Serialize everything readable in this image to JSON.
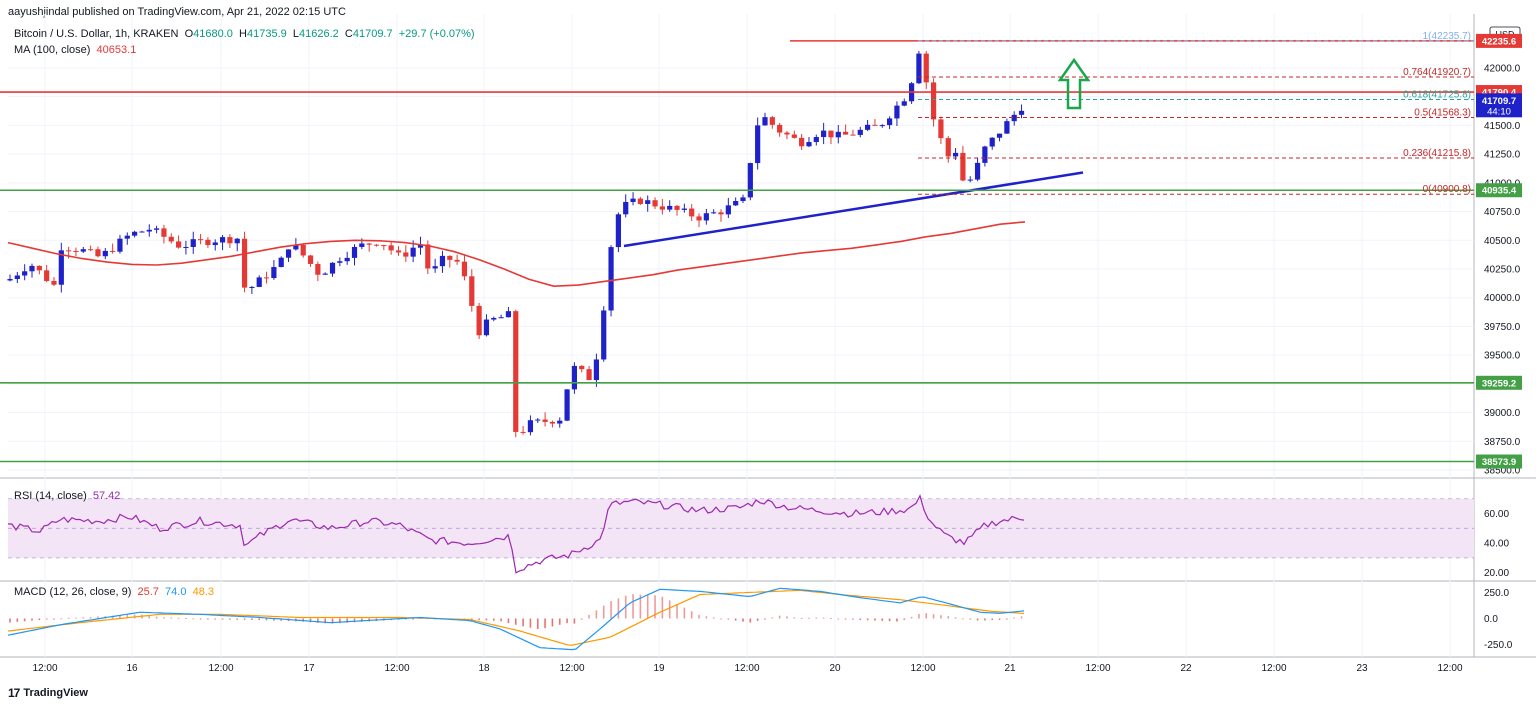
{
  "header": {
    "credit": "aayushjindal published on TradingView.com, Apr 21, 2022 02:15 UTC"
  },
  "legend": {
    "symbol": "Bitcoin / U.S. Dollar, 1h, KRAKEN",
    "o_label": "O",
    "o": "41680.0",
    "h_label": "H",
    "h": "41735.9",
    "l_label": "L",
    "l": "41626.2",
    "c_label": "C",
    "c": "41709.7",
    "change": "+29.7 (+0.07%)",
    "ma_label": "MA (100, close)",
    "ma_value": "40653.1",
    "rsi_label": "RSI (14, close)",
    "rsi_value": "57.42",
    "macd_label": "MACD (12, 26, close, 9)",
    "macd_hist": "25.7",
    "macd_line": "74.0",
    "macd_signal": "48.3"
  },
  "footer": {
    "logo": "17",
    "brand": "TradingView"
  },
  "colors": {
    "up": "#1e22c8",
    "down": "#e53935",
    "ma": "#e53935",
    "trendline": "#1e22c8",
    "support": "#43a047",
    "resistance": "#e53935",
    "fib": "#c62828",
    "rsi": "#9c27b0",
    "rsi_band": "#f3e5f5",
    "macd_line": "#2196f3",
    "macd_signal": "#ff9800",
    "arrow": "#1aa64a",
    "price_tag": "#1e22c8"
  },
  "chart_data": [
    {
      "type": "candlestick",
      "name": "price",
      "ylim": [
        38500,
        42400
      ],
      "y_ticks": [
        "42000.0",
        "41750.0",
        "41500.0",
        "41250.0",
        "41000.0",
        "40750.0",
        "40500.0",
        "40250.0",
        "40000.0",
        "39750.0",
        "39500.0",
        "39250.0",
        "39000.0",
        "38750.0",
        "38500.0"
      ],
      "y_tick_values": [
        42000,
        41750,
        41500,
        41250,
        41000,
        40750,
        40500,
        40250,
        40000,
        39750,
        39500,
        39250,
        39000,
        38750,
        38500
      ],
      "x_ticks": [
        "12:00",
        "16",
        "12:00",
        "17",
        "12:00",
        "18",
        "12:00",
        "19",
        "12:00",
        "20",
        "12:00",
        "21",
        "12:00",
        "22",
        "12:00",
        "23",
        "12:00"
      ],
      "axis_unit": "USD",
      "ma_100": [
        40480,
        40430,
        40380,
        40340,
        40310,
        40290,
        40285,
        40300,
        40330,
        40360,
        40400,
        40440,
        40470,
        40490,
        40500,
        40495,
        40480,
        40450,
        40400,
        40330,
        40250,
        40160,
        40100,
        40110,
        40140,
        40170,
        40200,
        40240,
        40270,
        40300,
        40330,
        40360,
        40390,
        40410,
        40430,
        40460,
        40490,
        40530,
        40560,
        40600,
        40640,
        40660
      ],
      "horizontal_levels": [
        {
          "price": 42235.6,
          "label": "42235.6",
          "kind": "resistance"
        },
        {
          "price": 41790.4,
          "label": "41790.4",
          "kind": "resistance"
        },
        {
          "price": 40935.4,
          "label": "40935.4",
          "kind": "support"
        },
        {
          "price": 39259.2,
          "label": "39259.2",
          "kind": "support"
        },
        {
          "price": 38573.9,
          "label": "38573.9",
          "kind": "support"
        }
      ],
      "fib_levels": [
        {
          "price": 42235.7,
          "label": "1(42235.7)"
        },
        {
          "price": 41920.7,
          "label": "0.764(41920.7)"
        },
        {
          "price": 41725.8,
          "label": "0.618(41725.8)"
        },
        {
          "price": 41568.3,
          "label": "0.5(41568.3)"
        },
        {
          "price": 41215.8,
          "label": "0.236(41215.8)"
        },
        {
          "price": 40900.8,
          "label": "0(40900.8)"
        }
      ],
      "last_price": {
        "price": 41709.7,
        "label": "41709.7",
        "countdown": "44:10"
      },
      "trendline": {
        "from": 40450,
        "to": 41090
      }
    },
    {
      "type": "line",
      "name": "RSI",
      "ylim": [
        15,
        80
      ],
      "y_ticks": [
        "60.00",
        "40.00",
        "20.00"
      ],
      "y_tick_values": [
        60,
        40,
        20
      ],
      "band": [
        30,
        70
      ]
    },
    {
      "type": "line",
      "name": "MACD",
      "ylim": [
        -350,
        350
      ],
      "y_ticks": [
        "250.0",
        "0.0",
        "-250.0"
      ],
      "y_tick_values": [
        250,
        0,
        -250
      ]
    }
  ]
}
